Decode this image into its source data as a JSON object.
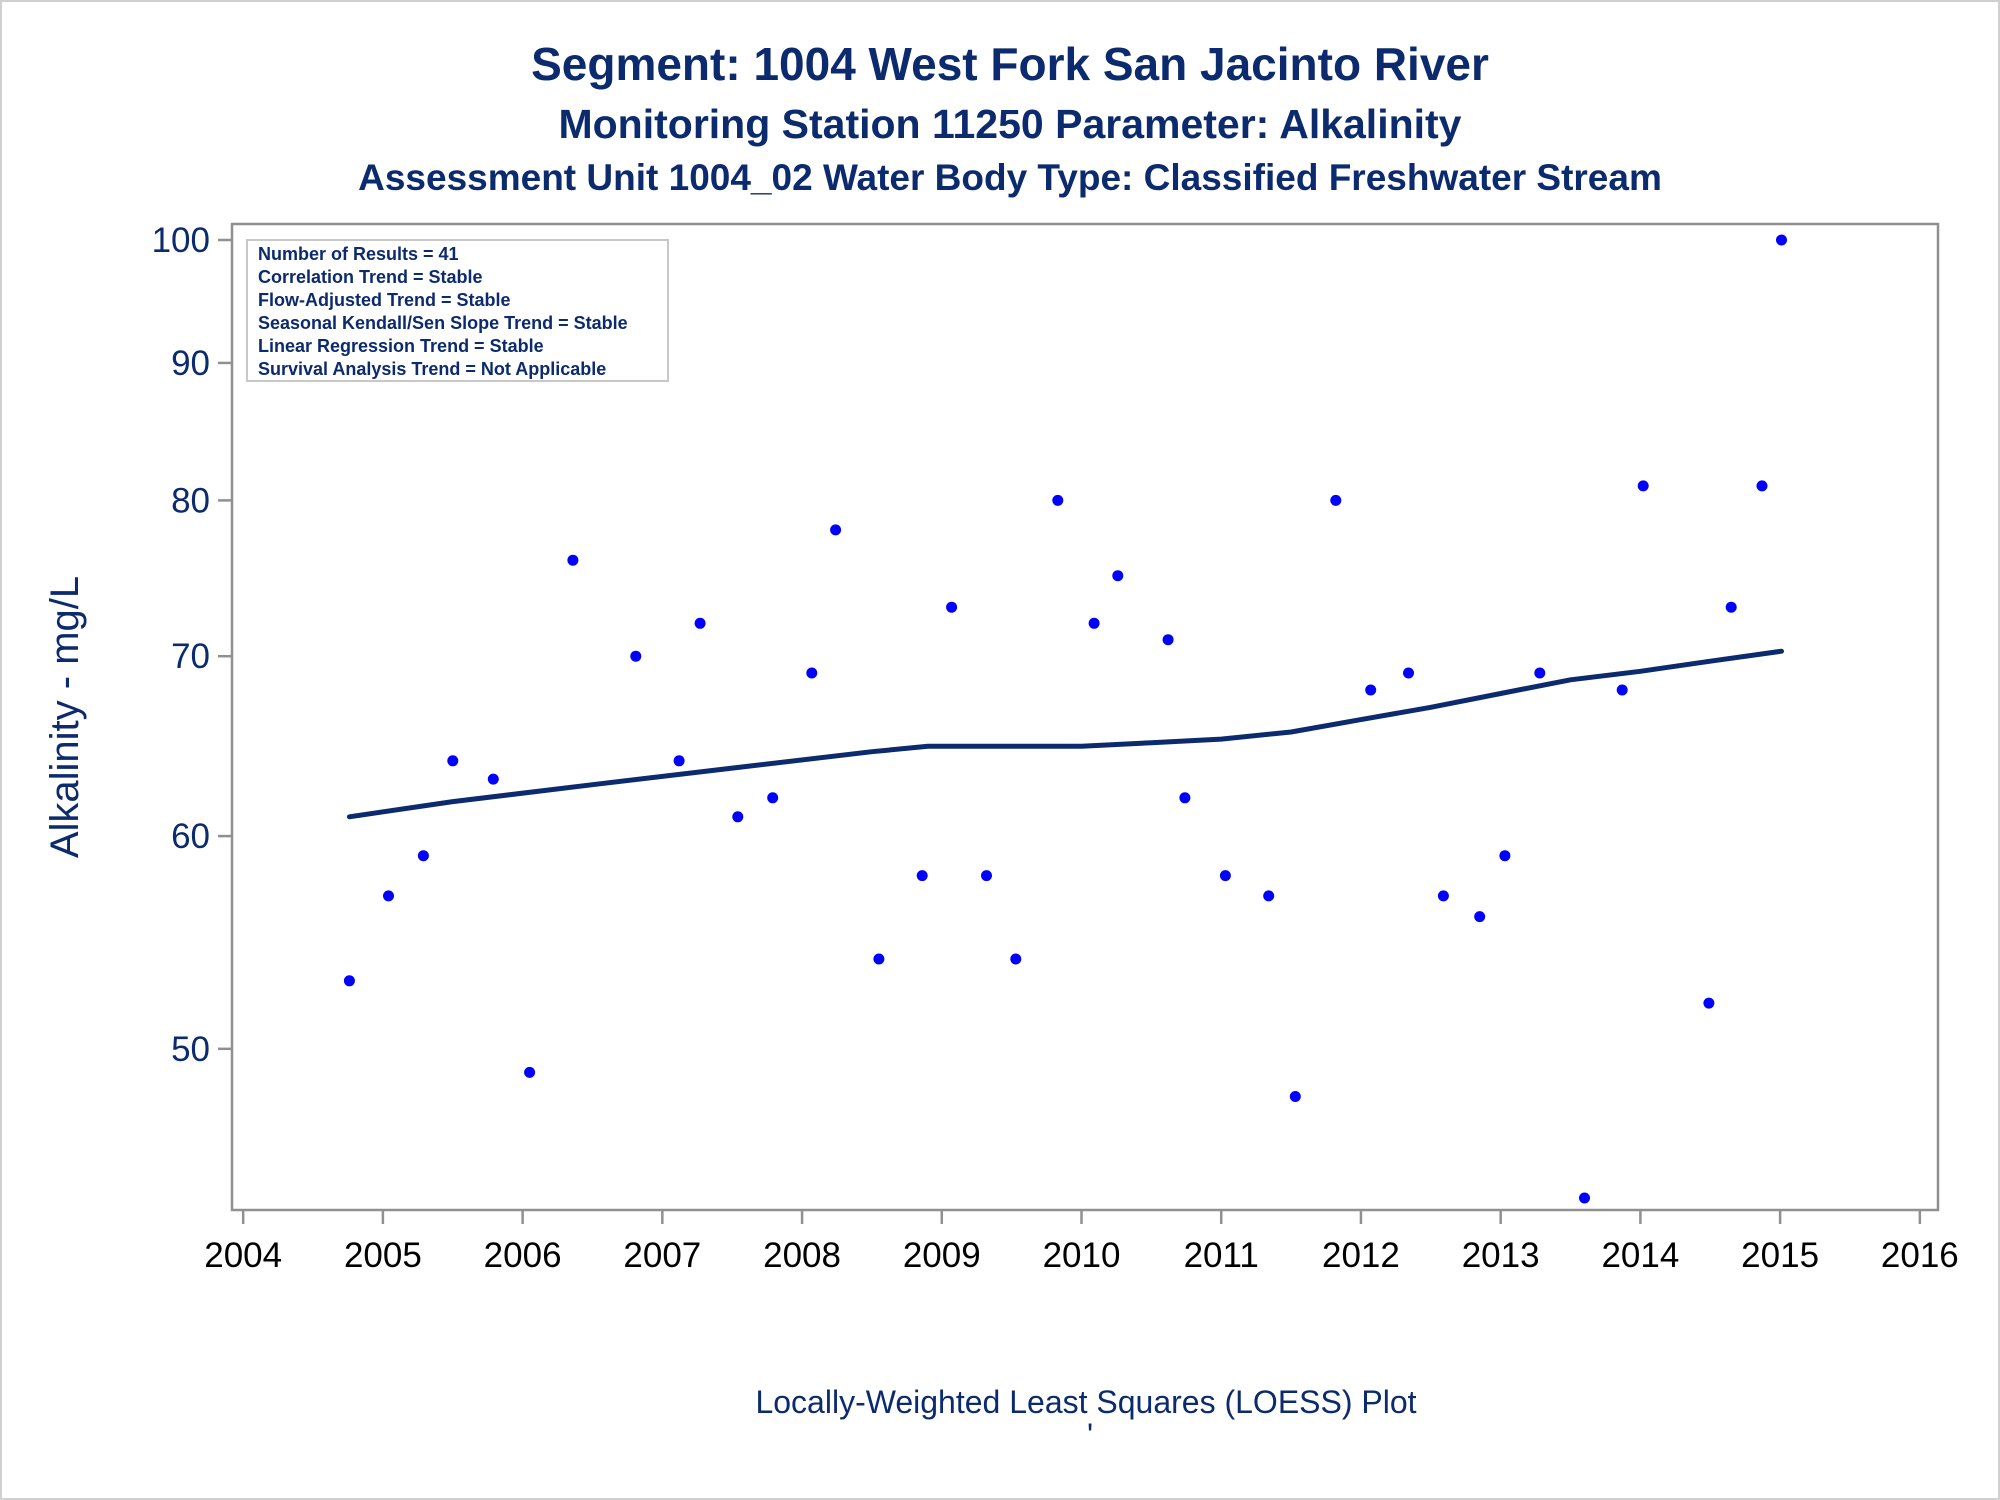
{
  "chart_data": {
    "type": "scatter",
    "title": "Segment: 1004  West Fork San Jacinto River",
    "subtitle": "Monitoring Station 11250 Parameter: Alkalinity",
    "subtitle2": "Assessment Unit 1004_02   Water Body Type: Classified Freshwater Stream",
    "ylabel": "Alkalinity - mg/L",
    "footer": "Locally-Weighted Least Squares (LOESS) Plot",
    "footer_mark": "'",
    "y_scale": "log",
    "ylim": [
      44,
      100
    ],
    "xlim": [
      2003.92,
      2016.13
    ],
    "x_ticks": [
      "2004",
      "2005",
      "2006",
      "2007",
      "2008",
      "2009",
      "2010",
      "2011",
      "2012",
      "2013",
      "2014",
      "2015",
      "2016"
    ],
    "y_ticks": [
      "50",
      "60",
      "70",
      "80",
      "90",
      "100"
    ],
    "grid": false,
    "marker_color": "#0000ff",
    "line_color": "#0c2a6e",
    "inset_box": {
      "position": "top-left",
      "lines": [
        "Number of Results = 41",
        "Correlation Trend = Stable",
        "Flow-Adjusted Trend = Stable",
        "Seasonal Kendall/Sen Slope Trend = Stable",
        "Linear Regression Trend = Stable",
        "Survival Analysis Trend = Not Applicable"
      ]
    },
    "series": [
      {
        "name": "",
        "kind": "points",
        "x": [
          2004.76,
          2005.04,
          2005.29,
          2005.5,
          2005.79,
          2006.05,
          2006.36,
          2006.81,
          2007.12,
          2007.27,
          2007.54,
          2007.79,
          2008.07,
          2008.24,
          2008.55,
          2008.86,
          2009.07,
          2009.32,
          2009.53,
          2009.83,
          2010.09,
          2010.26,
          2010.62,
          2010.74,
          2011.03,
          2011.34,
          2011.53,
          2011.82,
          2012.07,
          2012.34,
          2012.59,
          2012.85,
          2013.03,
          2013.28,
          2013.6,
          2013.87,
          2014.02,
          2014.49,
          2014.65,
          2014.87,
          2015.01
        ],
        "y": [
          53,
          57,
          59,
          64,
          63,
          49,
          76,
          70,
          64,
          72,
          61,
          62,
          69,
          78,
          54,
          58,
          73,
          58,
          54,
          80,
          72,
          75,
          71,
          62,
          58,
          57,
          48,
          80,
          68,
          69,
          57,
          56,
          59,
          69,
          44,
          68,
          81,
          52,
          73,
          81,
          100
        ]
      },
      {
        "name": "",
        "kind": "loess",
        "x": [
          2004.76,
          2005.5,
          2006.5,
          2007.5,
          2008.5,
          2008.9,
          2009.5,
          2010.0,
          2010.5,
          2011.0,
          2011.5,
          2012.0,
          2012.5,
          2013.0,
          2013.5,
          2014.0,
          2014.5,
          2015.01
        ],
        "y": [
          61.0,
          61.8,
          62.7,
          63.6,
          64.5,
          64.8,
          64.8,
          64.8,
          65.0,
          65.2,
          65.6,
          66.3,
          67.0,
          67.8,
          68.6,
          69.1,
          69.7,
          70.3
        ]
      }
    ]
  }
}
